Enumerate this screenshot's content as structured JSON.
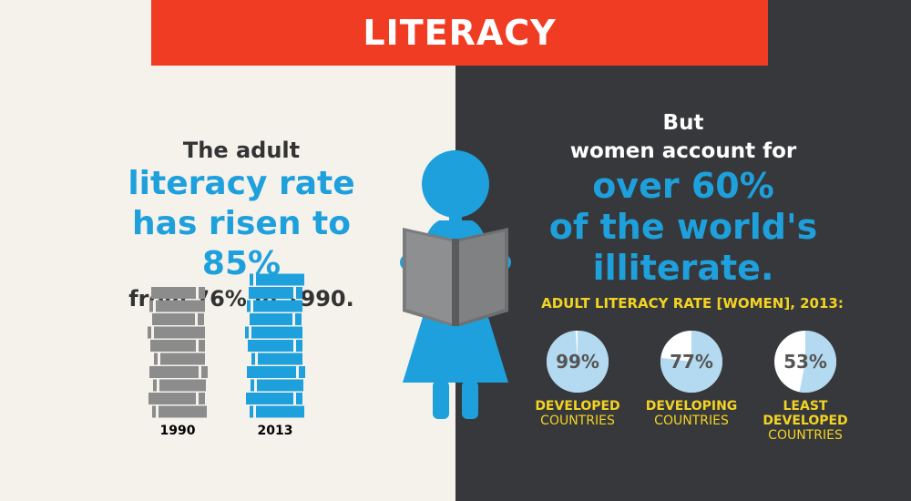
{
  "title": "LITERACY",
  "left": {
    "line1": "The adult",
    "line2": "literacy rate",
    "line3": "has risen to 85%",
    "line4": "from 76% in 1990.",
    "stacks": [
      {
        "label": "1990",
        "value": 76,
        "color": "#8c8c8c"
      },
      {
        "label": "2013",
        "value": 85,
        "color": "#1ea0dc"
      }
    ]
  },
  "right": {
    "line1": "But",
    "line2": "women account for",
    "line3": "over 60%",
    "line4": "of the world's",
    "line5": "illiterate.",
    "chart_title": "ADULT LITERACY RATE [WOMEN], 2013:"
  },
  "chart_data": {
    "type": "pie",
    "title": "ADULT LITERACY RATE [WOMEN], 2013:",
    "categories": [
      "DEVELOPED COUNTRIES",
      "DEVELOPING COUNTRIES",
      "LEAST DEVELOPED COUNTRIES"
    ],
    "values": [
      99,
      77,
      53
    ],
    "value_labels": [
      "99%",
      "77%",
      "53%"
    ],
    "colors": {
      "fill": "#b3daf0",
      "remainder": "#ffffff"
    },
    "labels": [
      {
        "a": "DEVELOPED",
        "b": "COUNTRIES"
      },
      {
        "a": "DEVELOPING",
        "b": "COUNTRIES"
      },
      {
        "a": "LEAST",
        "a2": "DEVELOPED",
        "b": "COUNTRIES"
      }
    ]
  },
  "colors": {
    "accent": "#1ea0dc",
    "title_bg": "#f03c23",
    "dark_bg": "#37383b",
    "light_bg": "#f5f2ec",
    "yellow": "#f3d324"
  },
  "icons": [
    "woman-reading-icon",
    "book-stack-icon"
  ]
}
